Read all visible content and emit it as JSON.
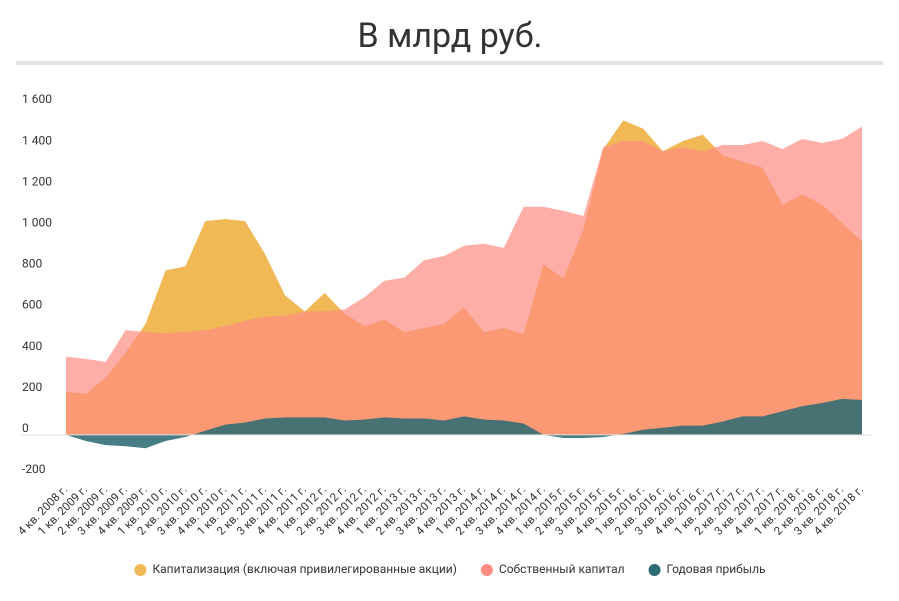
{
  "chart_data": {
    "type": "area",
    "title": "В млрд руб.",
    "categories": [
      "4 кв. 2008 г.",
      "1 кв. 2009 г.",
      "2 кв. 2009 г.",
      "3 кв. 2009 г.",
      "4 кв. 2009 г.",
      "1 кв. 2010 г.",
      "2 кв. 2010 г.",
      "3 кв. 2010 г.",
      "4 кв. 2010 г.",
      "1 кв. 2011 г.",
      "2 кв. 2011 г.",
      "3 кв. 2011 г.",
      "4 кв. 2011 г.",
      "1 кв. 2012 г.",
      "2 кв. 2012 г.",
      "3 кв. 2012 г.",
      "4 кв. 2012 г.",
      "1 кв. 2013 г.",
      "2 кв. 2013 г.",
      "3 кв. 2013 г.",
      "4 кв. 2013 г.",
      "1 кв. 2014 г.",
      "2 кв. 2014 г.",
      "3 кв. 2014 г.",
      "4 кв. 2014 г.",
      "1 кв. 2015 г.",
      "2 кв. 2015 г.",
      "3 кв. 2015 г.",
      "4 кв. 2015 г.",
      "1 кв. 2016 г.",
      "2 кв. 2016 г.",
      "3 кв. 2016 г.",
      "4 кв. 2016 г.",
      "1 кв. 2017 г.",
      "2 кв. 2017 г.",
      "3 кв. 2017 г.",
      "4 кв. 2017 г.",
      "1 кв. 2018 г.",
      "2 кв. 2018 г.",
      "3 кв. 2018 г.",
      "4 кв. 2018 г."
    ],
    "series": [
      {
        "name": "Капитализация (включая привилегированные акции)",
        "color": "#f0b955",
        "values": [
          210,
          200,
          280,
          400,
          540,
          800,
          820,
          1040,
          1050,
          1040,
          880,
          680,
          600,
          690,
          590,
          530,
          560,
          500,
          520,
          540,
          620,
          500,
          520,
          490,
          830,
          760,
          1000,
          1390,
          1530,
          1490,
          1380,
          1430,
          1460,
          1360,
          1330,
          1300,
          1120,
          1170,
          1120,
          1030,
          940
        ]
      },
      {
        "name": "Собственный капитал",
        "color": "#ff8c82",
        "values": [
          380,
          370,
          355,
          510,
          500,
          495,
          500,
          510,
          530,
          555,
          575,
          580,
          600,
          600,
          610,
          670,
          750,
          765,
          850,
          870,
          920,
          930,
          910,
          1110,
          1110,
          1090,
          1065,
          1400,
          1430,
          1430,
          1380,
          1400,
          1380,
          1410,
          1410,
          1430,
          1390,
          1440,
          1420,
          1440,
          1500
        ]
      },
      {
        "name": "Годовая прибыль",
        "color": "#2e6b73",
        "values": [
          0,
          -30,
          -50,
          -55,
          -65,
          -30,
          -10,
          20,
          50,
          60,
          80,
          85,
          85,
          85,
          70,
          75,
          85,
          80,
          80,
          70,
          90,
          75,
          70,
          55,
          0,
          -15,
          -15,
          -10,
          5,
          25,
          35,
          45,
          45,
          65,
          90,
          90,
          115,
          140,
          155,
          175,
          170
        ]
      }
    ],
    "ylim": [
      -200,
      1600
    ],
    "yticks": [
      -200,
      0,
      200,
      400,
      600,
      800,
      {
        "value": 1000,
        "label": "1 000"
      },
      {
        "value": 1200,
        "label": "1 200"
      },
      {
        "value": 1400,
        "label": "1 400"
      },
      {
        "value": 1600,
        "label": "1 600"
      }
    ],
    "grid": false
  }
}
